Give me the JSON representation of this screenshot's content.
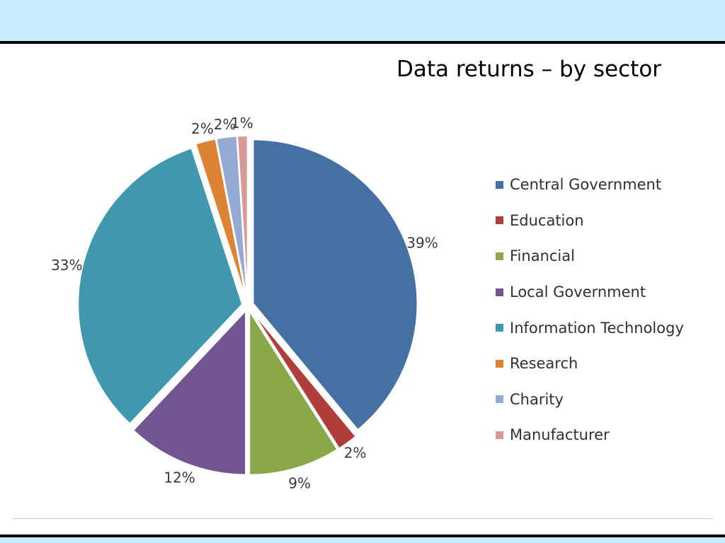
{
  "slide": {
    "band_color": "#c7ecfb",
    "rule_color": "#000000"
  },
  "chart_data": {
    "type": "pie",
    "title": "Data returns – by sector",
    "categories": [
      "Central Government",
      "Education",
      "Financial",
      "Local Government",
      "Information Technology",
      "Research",
      "Charity",
      "Manufacturer"
    ],
    "values": [
      39,
      2,
      9,
      12,
      33,
      2,
      2,
      1
    ],
    "labels": [
      "39%",
      "2%",
      "9%",
      "12%",
      "33%",
      "2%",
      "2%",
      "1%"
    ],
    "colors": [
      "#4470a6",
      "#b13d3b",
      "#8aa84a",
      "#715591",
      "#3f98ae",
      "#dd8434",
      "#93aad3",
      "#d89a98"
    ],
    "legend_position": "right",
    "exploded": true
  }
}
